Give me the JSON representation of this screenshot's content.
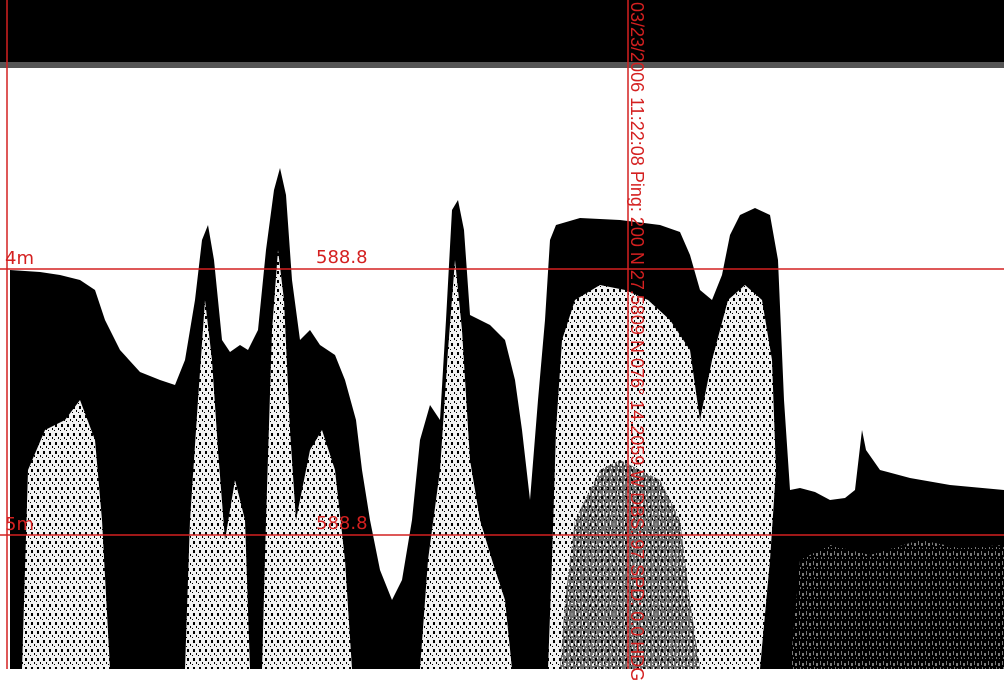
{
  "echogram": {
    "depth_lines": [
      {
        "depth_label": "4m",
        "value_label": "588.8"
      },
      {
        "depth_label": "5m",
        "value_label": "588.8"
      }
    ],
    "marker_text": "03/23/2006 11:22:08 Ping: 200 N 27.5809 N 076° 14.2059 W DBS: 97 SPD: 0.0 HDG",
    "colors": {
      "overlay_red": "#d42020",
      "echo_black": "#000000",
      "background_white": "#ffffff"
    }
  }
}
